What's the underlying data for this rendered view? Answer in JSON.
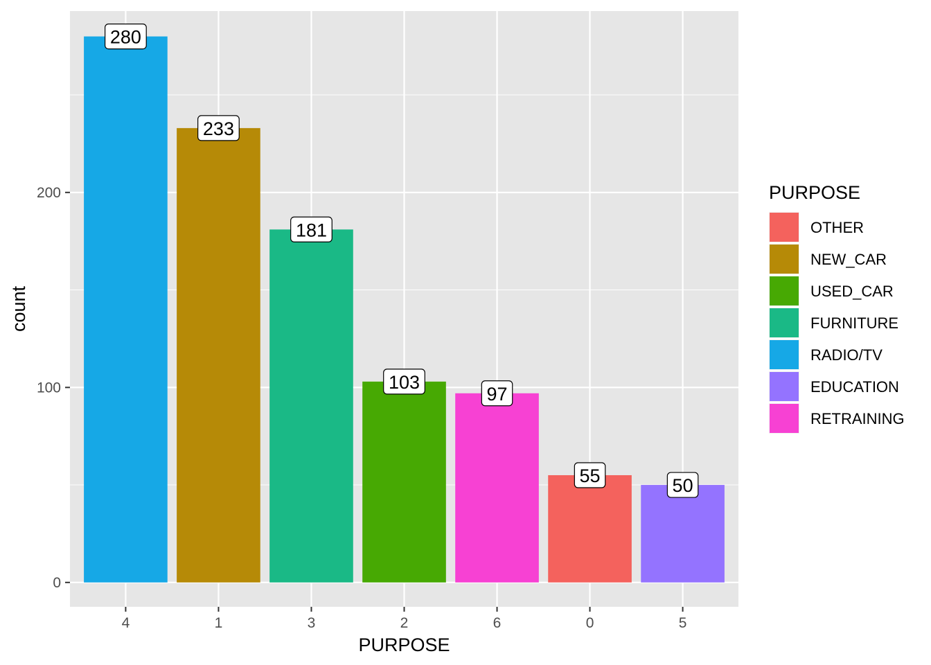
{
  "chart_data": {
    "type": "bar",
    "title": "",
    "xlabel": "PURPOSE",
    "ylabel": "count",
    "categories": [
      "4",
      "1",
      "3",
      "2",
      "6",
      "0",
      "5"
    ],
    "values": [
      280,
      233,
      181,
      103,
      97,
      55,
      50
    ],
    "data_labels": [
      "280",
      "233",
      "181",
      "103",
      "97",
      "55",
      "50"
    ],
    "bar_colors": [
      "#16A8E6",
      "#B68A07",
      "#1AB986",
      "#47A903",
      "#F741D3",
      "#F4625D",
      "#9473FF"
    ],
    "ylim": [
      -12.5,
      293
    ],
    "y_ticks": [
      0,
      100,
      200
    ],
    "y_tick_labels": [
      "0",
      "100",
      "200"
    ],
    "grid": true,
    "panel_background": "#E6E6E6",
    "grid_color": "#FFFFFF",
    "legend": {
      "title": "PURPOSE",
      "position": "right",
      "entries": [
        {
          "label": "OTHER",
          "color": "#F4625D"
        },
        {
          "label": "NEW_CAR",
          "color": "#B68A07"
        },
        {
          "label": "USED_CAR",
          "color": "#47A903"
        },
        {
          "label": "FURNITURE",
          "color": "#1AB986"
        },
        {
          "label": "RADIO/TV",
          "color": "#16A8E6"
        },
        {
          "label": "EDUCATION",
          "color": "#9473FF"
        },
        {
          "label": "RETRAINING",
          "color": "#F741D3"
        }
      ]
    }
  }
}
